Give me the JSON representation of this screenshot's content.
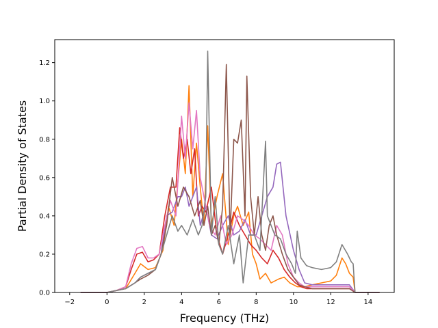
{
  "chart_data": {
    "type": "line",
    "title": "",
    "xlabel": "Frequency (THz)",
    "ylabel": "Partial Density of States",
    "xlim": [
      -2.8,
      15.4
    ],
    "ylim": [
      0,
      1.32
    ],
    "grid": false,
    "legend": "none",
    "x_ticks": [
      -2,
      0,
      2,
      4,
      6,
      8,
      10,
      12,
      14
    ],
    "x_tick_labels": [
      "−2",
      "0",
      "2",
      "4",
      "6",
      "8",
      "10",
      "12",
      "14"
    ],
    "y_ticks": [
      0.0,
      0.2,
      0.4,
      0.6,
      0.8,
      1.0,
      1.2
    ],
    "y_tick_labels": [
      "0.0",
      "0.2",
      "0.4",
      "0.6",
      "0.8",
      "1.0",
      "1.2"
    ],
    "series": [
      {
        "color": "#ff7f0e",
        "x": [
          -1.4,
          0,
          0.5,
          1.0,
          1.5,
          1.8,
          2.2,
          2.6,
          3.0,
          3.3,
          3.6,
          4.0,
          4.2,
          4.4,
          4.6,
          4.8,
          5.0,
          5.2,
          5.4,
          5.6,
          5.9,
          6.2,
          6.5,
          6.8,
          7.0,
          7.3,
          7.6,
          7.8,
          8.0,
          8.2,
          8.5,
          8.8,
          9.0,
          9.2,
          9.5,
          9.8,
          10.2,
          10.6,
          11.0,
          11.5,
          12.0,
          12.3,
          12.6,
          12.8,
          13.0,
          13.2,
          13.3,
          14.6
        ],
        "y": [
          0,
          0,
          0.01,
          0.02,
          0.1,
          0.15,
          0.12,
          0.13,
          0.22,
          0.45,
          0.35,
          0.8,
          0.62,
          1.08,
          0.5,
          0.78,
          0.55,
          0.35,
          0.87,
          0.35,
          0.5,
          0.62,
          0.25,
          0.4,
          0.45,
          0.35,
          0.42,
          0.2,
          0.15,
          0.07,
          0.1,
          0.05,
          0.06,
          0.07,
          0.08,
          0.05,
          0.03,
          0.03,
          0.04,
          0.05,
          0.06,
          0.09,
          0.18,
          0.15,
          0.1,
          0.08,
          0,
          0
        ]
      },
      {
        "color": "#d62728",
        "x": [
          -1.4,
          0,
          0.5,
          1.0,
          1.3,
          1.6,
          1.9,
          2.2,
          2.5,
          2.8,
          3.1,
          3.4,
          3.7,
          3.9,
          4.1,
          4.3,
          4.5,
          4.7,
          4.9,
          5.1,
          5.3,
          5.6,
          5.9,
          6.2,
          6.5,
          6.8,
          7.1,
          7.4,
          7.7,
          8.0,
          8.3,
          8.6,
          8.9,
          9.2,
          9.5,
          9.8,
          10.1,
          10.4,
          10.7,
          11.0,
          11.5,
          12.0,
          12.5,
          13.0,
          13.3,
          14.6
        ],
        "y": [
          0,
          0,
          0.01,
          0.03,
          0.12,
          0.2,
          0.21,
          0.16,
          0.17,
          0.2,
          0.4,
          0.55,
          0.55,
          0.86,
          0.7,
          0.8,
          0.62,
          0.75,
          0.4,
          0.45,
          0.42,
          0.55,
          0.3,
          0.2,
          0.3,
          0.42,
          0.35,
          0.3,
          0.25,
          0.22,
          0.18,
          0.15,
          0.22,
          0.18,
          0.12,
          0.08,
          0.05,
          0.03,
          0.02,
          0.02,
          0.02,
          0.02,
          0.02,
          0.02,
          0,
          0
        ]
      },
      {
        "color": "#9467bd",
        "x": [
          -1.4,
          0,
          0.5,
          1.0,
          1.5,
          1.8,
          2.2,
          2.6,
          2.9,
          3.2,
          3.5,
          3.8,
          4.0,
          4.2,
          4.4,
          4.6,
          4.8,
          5.0,
          5.3,
          5.6,
          5.9,
          6.2,
          6.5,
          6.8,
          7.1,
          7.4,
          7.7,
          8.0,
          8.3,
          8.6,
          8.9,
          9.1,
          9.3,
          9.6,
          10.0,
          10.3,
          10.6,
          11.0,
          11.5,
          12.0,
          12.5,
          13.0,
          13.3,
          14.6
        ],
        "y": [
          0,
          0,
          0.01,
          0.02,
          0.05,
          0.08,
          0.1,
          0.12,
          0.2,
          0.4,
          0.42,
          0.5,
          0.5,
          0.55,
          0.45,
          0.5,
          0.55,
          0.35,
          0.45,
          0.3,
          0.28,
          0.35,
          0.4,
          0.3,
          0.32,
          0.38,
          0.3,
          0.3,
          0.4,
          0.5,
          0.55,
          0.67,
          0.68,
          0.4,
          0.22,
          0.12,
          0.05,
          0.04,
          0.04,
          0.04,
          0.04,
          0.04,
          0,
          0
        ]
      },
      {
        "color": "#e377c2",
        "x": [
          -1.4,
          0,
          0.5,
          1.0,
          1.3,
          1.6,
          1.9,
          2.2,
          2.5,
          2.8,
          3.1,
          3.4,
          3.7,
          4.0,
          4.2,
          4.4,
          4.6,
          4.8,
          5.0,
          5.2,
          5.5,
          5.8,
          6.1,
          6.4,
          6.7,
          7.0,
          7.3,
          7.6,
          7.9,
          8.2,
          8.5,
          8.8,
          9.1,
          9.4,
          9.7,
          10.0,
          10.3,
          10.6,
          11.0,
          11.5,
          12.0,
          12.5,
          13.0,
          13.3,
          14.6
        ],
        "y": [
          0,
          0,
          0.01,
          0.03,
          0.15,
          0.23,
          0.24,
          0.18,
          0.18,
          0.2,
          0.35,
          0.48,
          0.4,
          0.92,
          0.7,
          0.99,
          0.75,
          0.95,
          0.6,
          0.5,
          0.35,
          0.3,
          0.4,
          0.25,
          0.3,
          0.4,
          0.38,
          0.35,
          0.3,
          0.28,
          0.25,
          0.22,
          0.35,
          0.3,
          0.15,
          0.08,
          0.05,
          0.03,
          0.03,
          0.03,
          0.03,
          0.03,
          0.03,
          0,
          0
        ]
      },
      {
        "color": "#8c564b",
        "x": [
          -1.4,
          0,
          0.5,
          1.0,
          1.5,
          1.8,
          2.2,
          2.6,
          2.9,
          3.2,
          3.5,
          3.8,
          4.1,
          4.4,
          4.7,
          5.0,
          5.2,
          5.4,
          5.6,
          5.8,
          6.0,
          6.2,
          6.4,
          6.6,
          6.8,
          7.0,
          7.2,
          7.4,
          7.5,
          7.7,
          7.9,
          8.1,
          8.3,
          8.5,
          8.7,
          8.9,
          9.1,
          9.4,
          9.7,
          10.0,
          10.3,
          10.6,
          11.0,
          11.5,
          12.0,
          12.5,
          13.0,
          13.3,
          14.6
        ],
        "y": [
          0,
          0,
          0.01,
          0.02,
          0.05,
          0.07,
          0.09,
          0.12,
          0.2,
          0.35,
          0.6,
          0.45,
          0.55,
          0.5,
          0.4,
          0.48,
          0.35,
          0.45,
          0.3,
          0.35,
          0.25,
          0.45,
          1.19,
          0.3,
          0.8,
          0.78,
          0.9,
          0.4,
          1.13,
          0.5,
          0.3,
          0.5,
          0.3,
          0.22,
          0.35,
          0.4,
          0.3,
          0.2,
          0.12,
          0.08,
          0.04,
          0.03,
          0.02,
          0.02,
          0.02,
          0.02,
          0.02,
          0,
          0
        ]
      },
      {
        "color": "#7f7f7f",
        "x": [
          -1.4,
          0,
          0.5,
          1.0,
          1.5,
          1.8,
          2.2,
          2.6,
          2.9,
          3.2,
          3.5,
          3.8,
          4.0,
          4.3,
          4.6,
          4.9,
          5.1,
          5.3,
          5.4,
          5.6,
          5.8,
          6.0,
          6.2,
          6.5,
          6.8,
          7.1,
          7.3,
          7.6,
          7.9,
          8.2,
          8.5,
          8.6,
          8.8,
          9.0,
          9.3,
          9.6,
          9.9,
          10.1,
          10.2,
          10.4,
          10.7,
          11.0,
          11.5,
          12.0,
          12.3,
          12.6,
          12.9,
          13.1,
          13.2,
          13.3,
          14.6
        ],
        "y": [
          0,
          0,
          0.01,
          0.02,
          0.05,
          0.08,
          0.1,
          0.12,
          0.2,
          0.3,
          0.4,
          0.32,
          0.35,
          0.3,
          0.38,
          0.3,
          0.35,
          0.5,
          1.26,
          0.3,
          0.5,
          0.25,
          0.2,
          0.35,
          0.15,
          0.3,
          0.05,
          0.3,
          0.3,
          0.22,
          0.79,
          0.4,
          0.35,
          0.3,
          0.28,
          0.2,
          0.15,
          0.1,
          0.32,
          0.18,
          0.14,
          0.13,
          0.12,
          0.13,
          0.16,
          0.25,
          0.2,
          0.16,
          0.15,
          0,
          0
        ]
      }
    ]
  }
}
